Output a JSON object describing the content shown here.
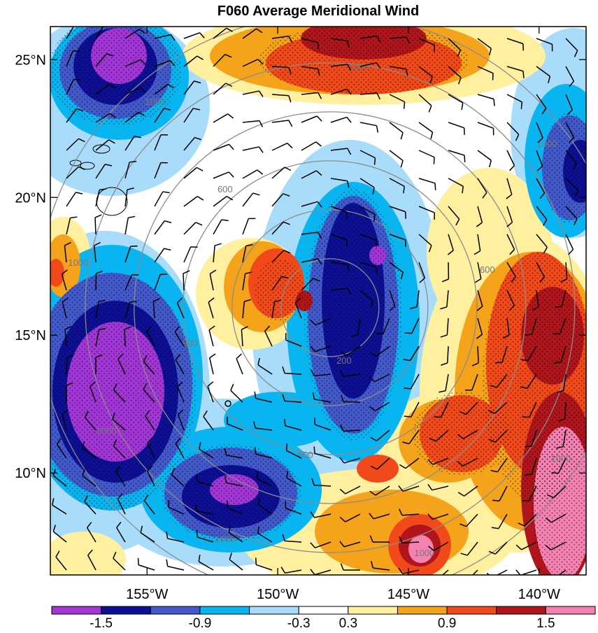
{
  "chart_data": {
    "type": "heatmap",
    "title": "F060 Average Meridional Wind",
    "x_tick_labels": [
      "155°W",
      "150°W",
      "145°W",
      "140°W"
    ],
    "x_ticks": [
      -155,
      -150,
      -145,
      -140
    ],
    "y_tick_labels": [
      "10°N",
      "15°N",
      "20°N",
      "25°N"
    ],
    "y_ticks": [
      10,
      15,
      20,
      25
    ],
    "xlim": [
      -158.7,
      -138.2
    ],
    "ylim": [
      6.3,
      26.2
    ],
    "colorbar": {
      "tick_labels": [
        "-1.5",
        "-0.9",
        "-0.3",
        "0.3",
        "0.9",
        "1.5"
      ],
      "levels": [
        -1.8,
        -1.5,
        -1.2,
        -0.9,
        -0.6,
        -0.3,
        0.3,
        0.6,
        0.9,
        1.2,
        1.5,
        1.8
      ],
      "colors": [
        "#a135d6",
        "#0d0f94",
        "#4259cc",
        "#09b5f0",
        "#a9dcfa",
        "#ffffff",
        "#fff0a0",
        "#f5a31a",
        "#f2491b",
        "#b0151b",
        "#f580b2"
      ]
    },
    "range_ring_labels": [
      "200",
      "600",
      "1000"
    ],
    "features": {
      "stippling_over_significant": true,
      "wind_barbs": true,
      "range_rings_centered": [
        -148.0,
        16.0
      ]
    }
  }
}
